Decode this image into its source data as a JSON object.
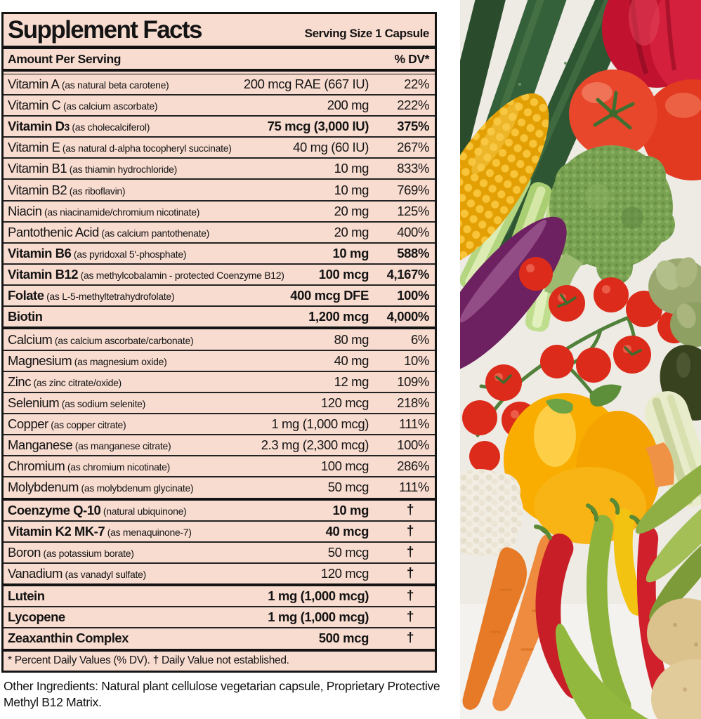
{
  "colors": {
    "label_bg": "#f8dcd0",
    "rule": "#141414",
    "text": "#141414",
    "photo_bg": "#edebe4"
  },
  "label": {
    "title": "Supplement Facts",
    "serving_size": "Serving Size 1 Capsule",
    "amount_header": "Amount Per Serving",
    "dv_header": "% DV*",
    "rows": [
      {
        "name": "Vitamin A",
        "sub": "",
        "note": "(as natural beta carotene)",
        "amount": "200 mcg RAE (667 IU)",
        "dv": "22%",
        "bold": false,
        "group": false
      },
      {
        "name": "Vitamin C",
        "sub": "",
        "note": "(as calcium ascorbate)",
        "amount": "200 mg",
        "dv": "222%",
        "bold": false,
        "group": false
      },
      {
        "name": "Vitamin D",
        "sub": "3",
        "note": "(as cholecalciferol)",
        "amount": "75 mcg (3,000 IU)",
        "dv": "375%",
        "bold": true,
        "group": false
      },
      {
        "name": "Vitamin E",
        "sub": "",
        "note": "(as natural d-alpha tocopheryl succinate)",
        "amount": "40 mg (60 IU)",
        "dv": "267%",
        "bold": false,
        "group": false
      },
      {
        "name": "Vitamin B1",
        "sub": "",
        "note": "(as thiamin hydrochloride)",
        "amount": "10 mg",
        "dv": "833%",
        "bold": false,
        "group": false
      },
      {
        "name": "Vitamin B2",
        "sub": "",
        "note": "(as riboflavin)",
        "amount": "10 mg",
        "dv": "769%",
        "bold": false,
        "group": false
      },
      {
        "name": "Niacin",
        "sub": "",
        "note": "(as niacinamide/chromium nicotinate)",
        "amount": "20 mg",
        "dv": "125%",
        "bold": false,
        "group": false
      },
      {
        "name": "Pantothenic Acid",
        "sub": "",
        "note": "(as calcium pantothenate)",
        "amount": "20 mg",
        "dv": "400%",
        "bold": false,
        "group": false
      },
      {
        "name": "Vitamin B6",
        "sub": "",
        "note": "(as pyridoxal 5'-phosphate)",
        "amount": "10 mg",
        "dv": "588%",
        "bold": true,
        "group": false
      },
      {
        "name": "Vitamin B12",
        "sub": "",
        "note": "(as methylcobalamin - protected Coenzyme B12)",
        "amount": "100 mcg",
        "dv": "4,167%",
        "bold": true,
        "group": false
      },
      {
        "name": "Folate",
        "sub": "",
        "note": "(as L-5-methyltetrahydrofolate)",
        "amount": "400 mcg DFE",
        "dv": "100%",
        "bold": true,
        "group": false
      },
      {
        "name": "Biotin",
        "sub": "",
        "note": "",
        "amount": "1,200 mcg",
        "dv": "4,000%",
        "bold": true,
        "group": false
      },
      {
        "name": "Calcium",
        "sub": "",
        "note": "(as calcium ascorbate/carbonate)",
        "amount": "80 mg",
        "dv": "6%",
        "bold": false,
        "group": true
      },
      {
        "name": "Magnesium",
        "sub": "",
        "note": "(as magnesium oxide)",
        "amount": "40 mg",
        "dv": "10%",
        "bold": false,
        "group": false
      },
      {
        "name": "Zinc",
        "sub": "",
        "note": "(as zinc citrate/oxide)",
        "amount": "12 mg",
        "dv": "109%",
        "bold": false,
        "group": false
      },
      {
        "name": "Selenium",
        "sub": "",
        "note": "(as sodium selenite)",
        "amount": "120 mcg",
        "dv": "218%",
        "bold": false,
        "group": false
      },
      {
        "name": "Copper",
        "sub": "",
        "note": "(as copper citrate)",
        "amount": "1 mg (1,000 mcg)",
        "dv": "111%",
        "bold": false,
        "group": false
      },
      {
        "name": "Manganese",
        "sub": "",
        "note": "(as manganese citrate)",
        "amount": "2.3 mg (2,300 mcg)",
        "dv": "100%",
        "bold": false,
        "group": false
      },
      {
        "name": "Chromium",
        "sub": "",
        "note": "(as chromium nicotinate)",
        "amount": "100 mcg",
        "dv": "286%",
        "bold": false,
        "group": false
      },
      {
        "name": "Molybdenum",
        "sub": "",
        "note": "(as molybdenum glycinate)",
        "amount": "50 mcg",
        "dv": "111%",
        "bold": false,
        "group": false
      },
      {
        "name": "Coenzyme Q-10",
        "sub": "",
        "note": "(natural ubiquinone)",
        "amount": "10 mg",
        "dv": "†",
        "bold": true,
        "group": true
      },
      {
        "name": "Vitamin K2 MK-7",
        "sub": "",
        "note": "(as menaquinone-7)",
        "amount": "40 mcg",
        "dv": "†",
        "bold": true,
        "group": false
      },
      {
        "name": "Boron",
        "sub": "",
        "note": "(as potassium borate)",
        "amount": "50 mcg",
        "dv": "†",
        "bold": false,
        "group": false
      },
      {
        "name": "Vanadium",
        "sub": "",
        "note": "(as vanadyl sulfate)",
        "amount": "120 mcg",
        "dv": "†",
        "bold": false,
        "group": false
      },
      {
        "name": "Lutein",
        "sub": "",
        "note": "",
        "amount": "1 mg (1,000 mcg)",
        "dv": "†",
        "bold": true,
        "group": true
      },
      {
        "name": "Lycopene",
        "sub": "",
        "note": "",
        "amount": "1 mg (1,000 mcg)",
        "dv": "†",
        "bold": true,
        "group": false
      },
      {
        "name": "Zeaxanthin Complex",
        "sub": "",
        "note": "",
        "amount": "500 mcg",
        "dv": "†",
        "bold": true,
        "group": false
      }
    ],
    "footnote": "* Percent Daily Values (% DV). † Daily Value not established.",
    "other_ingredients": "Other Ingredients: Natural plant cellulose vegetarian capsule, Proprietary Protective Methyl B12 Matrix."
  },
  "photo": {
    "vegetables": [
      "zucchini",
      "celery",
      "corn cob",
      "red bell pepper",
      "tomatoes",
      "broccoli",
      "eggplant",
      "cherry tomatoes on vine",
      "artichokes",
      "avocado",
      "endive",
      "yellow bell pepper",
      "cauliflower",
      "carrots",
      "chili peppers",
      "snow peas",
      "potatoes"
    ]
  }
}
